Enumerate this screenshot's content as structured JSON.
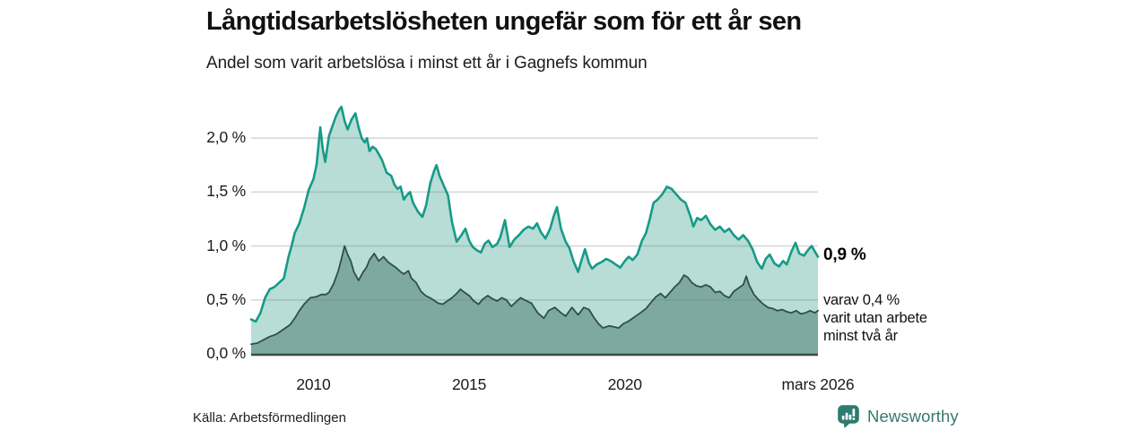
{
  "header": {
    "title": "Långtidsarbetslösheten ungefär som för ett år sen",
    "subtitle": "Andel som varit arbetslösa i minst ett år i Gagnefs kommun"
  },
  "chart_data": {
    "type": "area",
    "title": "Långtidsarbetslösheten ungefär som för ett år sen",
    "subtitle": "Andel som varit arbetslösa i minst ett år i Gagnefs kommun",
    "grid": "horizontal",
    "legend_position": "none",
    "xlim": [
      2008.0,
      2026.2
    ],
    "ylim": [
      0,
      2.4
    ],
    "x_axis": {
      "ticks": [
        {
          "label": "2010",
          "year": 2010
        },
        {
          "label": "2015",
          "year": 2015
        },
        {
          "label": "2020",
          "year": 2020
        },
        {
          "label": "mars 2026",
          "year": 2026.2
        }
      ]
    },
    "y_axis": {
      "ticks": [
        {
          "label": "0,0 %",
          "value": 0
        },
        {
          "label": "0,5 %",
          "value": 0.5
        },
        {
          "label": "1,0 %",
          "value": 1.0
        },
        {
          "label": "1,5 %",
          "value": 1.5
        },
        {
          "label": "2,0 %",
          "value": 2.0
        }
      ]
    },
    "series": [
      {
        "name": "Andel arbetslösa minst ett år",
        "line_color": "#179a88",
        "fill_color": "#b7ddd6",
        "line_width": 2.6,
        "latest_value_pct": 0.9,
        "points": [
          [
            2008.0,
            0.32
          ],
          [
            2008.15,
            0.3
          ],
          [
            2008.3,
            0.38
          ],
          [
            2008.45,
            0.52
          ],
          [
            2008.6,
            0.6
          ],
          [
            2008.75,
            0.62
          ],
          [
            2008.9,
            0.66
          ],
          [
            2009.05,
            0.7
          ],
          [
            2009.2,
            0.9
          ],
          [
            2009.3,
            1.0
          ],
          [
            2009.4,
            1.12
          ],
          [
            2009.55,
            1.21
          ],
          [
            2009.7,
            1.35
          ],
          [
            2009.85,
            1.52
          ],
          [
            2010.0,
            1.62
          ],
          [
            2010.1,
            1.75
          ],
          [
            2010.22,
            2.1
          ],
          [
            2010.3,
            1.9
          ],
          [
            2010.38,
            1.78
          ],
          [
            2010.5,
            2.02
          ],
          [
            2010.62,
            2.12
          ],
          [
            2010.72,
            2.2
          ],
          [
            2010.82,
            2.26
          ],
          [
            2010.9,
            2.29
          ],
          [
            2011.0,
            2.16
          ],
          [
            2011.1,
            2.08
          ],
          [
            2011.22,
            2.17
          ],
          [
            2011.35,
            2.23
          ],
          [
            2011.45,
            2.1
          ],
          [
            2011.55,
            2.0
          ],
          [
            2011.65,
            1.96
          ],
          [
            2011.72,
            2.0
          ],
          [
            2011.8,
            1.88
          ],
          [
            2011.9,
            1.92
          ],
          [
            2012.0,
            1.9
          ],
          [
            2012.1,
            1.85
          ],
          [
            2012.2,
            1.8
          ],
          [
            2012.35,
            1.68
          ],
          [
            2012.5,
            1.65
          ],
          [
            2012.6,
            1.57
          ],
          [
            2012.7,
            1.53
          ],
          [
            2012.8,
            1.55
          ],
          [
            2012.9,
            1.43
          ],
          [
            2013.0,
            1.47
          ],
          [
            2013.1,
            1.5
          ],
          [
            2013.2,
            1.4
          ],
          [
            2013.35,
            1.32
          ],
          [
            2013.5,
            1.27
          ],
          [
            2013.62,
            1.38
          ],
          [
            2013.75,
            1.58
          ],
          [
            2013.88,
            1.7
          ],
          [
            2013.95,
            1.75
          ],
          [
            2014.05,
            1.65
          ],
          [
            2014.2,
            1.55
          ],
          [
            2014.32,
            1.47
          ],
          [
            2014.45,
            1.22
          ],
          [
            2014.6,
            1.04
          ],
          [
            2014.75,
            1.1
          ],
          [
            2014.88,
            1.16
          ],
          [
            2015.0,
            1.05
          ],
          [
            2015.12,
            0.99
          ],
          [
            2015.25,
            0.96
          ],
          [
            2015.38,
            0.94
          ],
          [
            2015.5,
            1.02
          ],
          [
            2015.62,
            1.05
          ],
          [
            2015.75,
            0.99
          ],
          [
            2015.9,
            1.02
          ],
          [
            2016.0,
            1.08
          ],
          [
            2016.15,
            1.24
          ],
          [
            2016.3,
            0.99
          ],
          [
            2016.45,
            1.06
          ],
          [
            2016.6,
            1.1
          ],
          [
            2016.75,
            1.15
          ],
          [
            2016.9,
            1.18
          ],
          [
            2017.05,
            1.16
          ],
          [
            2017.18,
            1.21
          ],
          [
            2017.3,
            1.13
          ],
          [
            2017.45,
            1.07
          ],
          [
            2017.6,
            1.16
          ],
          [
            2017.72,
            1.28
          ],
          [
            2017.82,
            1.36
          ],
          [
            2017.95,
            1.16
          ],
          [
            2018.1,
            1.04
          ],
          [
            2018.22,
            0.98
          ],
          [
            2018.35,
            0.86
          ],
          [
            2018.5,
            0.76
          ],
          [
            2018.62,
            0.88
          ],
          [
            2018.72,
            0.97
          ],
          [
            2018.85,
            0.84
          ],
          [
            2018.95,
            0.79
          ],
          [
            2019.1,
            0.83
          ],
          [
            2019.25,
            0.85
          ],
          [
            2019.4,
            0.88
          ],
          [
            2019.55,
            0.86
          ],
          [
            2019.7,
            0.83
          ],
          [
            2019.85,
            0.8
          ],
          [
            2020.0,
            0.86
          ],
          [
            2020.12,
            0.9
          ],
          [
            2020.25,
            0.87
          ],
          [
            2020.4,
            0.92
          ],
          [
            2020.55,
            1.05
          ],
          [
            2020.68,
            1.12
          ],
          [
            2020.8,
            1.25
          ],
          [
            2020.92,
            1.4
          ],
          [
            2021.05,
            1.43
          ],
          [
            2021.2,
            1.48
          ],
          [
            2021.35,
            1.55
          ],
          [
            2021.5,
            1.53
          ],
          [
            2021.65,
            1.48
          ],
          [
            2021.8,
            1.43
          ],
          [
            2021.95,
            1.4
          ],
          [
            2022.1,
            1.28
          ],
          [
            2022.2,
            1.18
          ],
          [
            2022.32,
            1.26
          ],
          [
            2022.45,
            1.24
          ],
          [
            2022.6,
            1.28
          ],
          [
            2022.75,
            1.2
          ],
          [
            2022.9,
            1.15
          ],
          [
            2023.05,
            1.18
          ],
          [
            2023.2,
            1.13
          ],
          [
            2023.35,
            1.16
          ],
          [
            2023.5,
            1.1
          ],
          [
            2023.65,
            1.06
          ],
          [
            2023.8,
            1.1
          ],
          [
            2023.95,
            1.05
          ],
          [
            2024.1,
            0.97
          ],
          [
            2024.25,
            0.85
          ],
          [
            2024.4,
            0.79
          ],
          [
            2024.52,
            0.88
          ],
          [
            2024.65,
            0.92
          ],
          [
            2024.8,
            0.84
          ],
          [
            2024.95,
            0.81
          ],
          [
            2025.08,
            0.86
          ],
          [
            2025.2,
            0.83
          ],
          [
            2025.35,
            0.95
          ],
          [
            2025.48,
            1.03
          ],
          [
            2025.6,
            0.93
          ],
          [
            2025.75,
            0.91
          ],
          [
            2025.9,
            0.97
          ],
          [
            2026.0,
            1.0
          ],
          [
            2026.1,
            0.95
          ],
          [
            2026.2,
            0.9
          ]
        ]
      },
      {
        "name": "varav utan arbete minst två år",
        "line_color": "#2f4f49",
        "fill_color": "#7da9a1",
        "line_width": 1.8,
        "latest_value_pct": 0.4,
        "points": [
          [
            2008.0,
            0.09
          ],
          [
            2008.2,
            0.1
          ],
          [
            2008.4,
            0.13
          ],
          [
            2008.6,
            0.16
          ],
          [
            2008.8,
            0.18
          ],
          [
            2008.95,
            0.21
          ],
          [
            2009.1,
            0.24
          ],
          [
            2009.25,
            0.27
          ],
          [
            2009.4,
            0.33
          ],
          [
            2009.55,
            0.4
          ],
          [
            2009.7,
            0.46
          ],
          [
            2009.9,
            0.52
          ],
          [
            2010.1,
            0.53
          ],
          [
            2010.25,
            0.55
          ],
          [
            2010.4,
            0.55
          ],
          [
            2010.5,
            0.57
          ],
          [
            2010.65,
            0.65
          ],
          [
            2010.8,
            0.77
          ],
          [
            2010.9,
            0.88
          ],
          [
            2011.0,
            1.0
          ],
          [
            2011.1,
            0.92
          ],
          [
            2011.2,
            0.86
          ],
          [
            2011.3,
            0.76
          ],
          [
            2011.45,
            0.68
          ],
          [
            2011.6,
            0.76
          ],
          [
            2011.7,
            0.8
          ],
          [
            2011.8,
            0.87
          ],
          [
            2011.95,
            0.93
          ],
          [
            2012.1,
            0.86
          ],
          [
            2012.25,
            0.9
          ],
          [
            2012.4,
            0.85
          ],
          [
            2012.5,
            0.83
          ],
          [
            2012.65,
            0.8
          ],
          [
            2012.8,
            0.76
          ],
          [
            2012.9,
            0.74
          ],
          [
            2013.05,
            0.77
          ],
          [
            2013.15,
            0.7
          ],
          [
            2013.3,
            0.66
          ],
          [
            2013.45,
            0.58
          ],
          [
            2013.6,
            0.54
          ],
          [
            2013.8,
            0.51
          ],
          [
            2014.0,
            0.47
          ],
          [
            2014.15,
            0.46
          ],
          [
            2014.3,
            0.49
          ],
          [
            2014.45,
            0.52
          ],
          [
            2014.6,
            0.56
          ],
          [
            2014.72,
            0.6
          ],
          [
            2014.85,
            0.57
          ],
          [
            2015.0,
            0.54
          ],
          [
            2015.15,
            0.49
          ],
          [
            2015.3,
            0.46
          ],
          [
            2015.45,
            0.51
          ],
          [
            2015.6,
            0.54
          ],
          [
            2015.75,
            0.51
          ],
          [
            2015.9,
            0.49
          ],
          [
            2016.05,
            0.52
          ],
          [
            2016.2,
            0.5
          ],
          [
            2016.35,
            0.44
          ],
          [
            2016.5,
            0.48
          ],
          [
            2016.65,
            0.52
          ],
          [
            2016.85,
            0.49
          ],
          [
            2017.0,
            0.47
          ],
          [
            2017.2,
            0.38
          ],
          [
            2017.4,
            0.33
          ],
          [
            2017.55,
            0.4
          ],
          [
            2017.75,
            0.43
          ],
          [
            2017.95,
            0.38
          ],
          [
            2018.1,
            0.35
          ],
          [
            2018.3,
            0.43
          ],
          [
            2018.5,
            0.36
          ],
          [
            2018.68,
            0.43
          ],
          [
            2018.85,
            0.41
          ],
          [
            2019.0,
            0.34
          ],
          [
            2019.15,
            0.28
          ],
          [
            2019.3,
            0.24
          ],
          [
            2019.5,
            0.26
          ],
          [
            2019.65,
            0.25
          ],
          [
            2019.8,
            0.24
          ],
          [
            2019.95,
            0.28
          ],
          [
            2020.1,
            0.3
          ],
          [
            2020.3,
            0.34
          ],
          [
            2020.5,
            0.38
          ],
          [
            2020.68,
            0.42
          ],
          [
            2020.85,
            0.48
          ],
          [
            2021.0,
            0.53
          ],
          [
            2021.15,
            0.56
          ],
          [
            2021.3,
            0.52
          ],
          [
            2021.45,
            0.57
          ],
          [
            2021.6,
            0.62
          ],
          [
            2021.75,
            0.66
          ],
          [
            2021.9,
            0.73
          ],
          [
            2022.02,
            0.71
          ],
          [
            2022.15,
            0.66
          ],
          [
            2022.3,
            0.63
          ],
          [
            2022.45,
            0.62
          ],
          [
            2022.6,
            0.64
          ],
          [
            2022.75,
            0.62
          ],
          [
            2022.9,
            0.57
          ],
          [
            2023.05,
            0.58
          ],
          [
            2023.2,
            0.54
          ],
          [
            2023.35,
            0.52
          ],
          [
            2023.5,
            0.58
          ],
          [
            2023.65,
            0.61
          ],
          [
            2023.8,
            0.64
          ],
          [
            2023.9,
            0.72
          ],
          [
            2024.0,
            0.63
          ],
          [
            2024.15,
            0.55
          ],
          [
            2024.3,
            0.5
          ],
          [
            2024.45,
            0.46
          ],
          [
            2024.6,
            0.43
          ],
          [
            2024.75,
            0.42
          ],
          [
            2024.9,
            0.4
          ],
          [
            2025.05,
            0.41
          ],
          [
            2025.2,
            0.39
          ],
          [
            2025.35,
            0.38
          ],
          [
            2025.5,
            0.4
          ],
          [
            2025.65,
            0.37
          ],
          [
            2025.8,
            0.38
          ],
          [
            2025.95,
            0.4
          ],
          [
            2026.1,
            0.38
          ],
          [
            2026.2,
            0.4
          ]
        ]
      }
    ],
    "annotations": [
      {
        "text": "0,9 %",
        "style": "bold",
        "refers_to": "Andel arbetslösa minst ett år"
      },
      {
        "text": "varav 0,4 %\nvarit utan arbete\nminst två år",
        "refers_to": "varav utan arbete minst två år"
      }
    ]
  },
  "annotations": {
    "latest_value": "0,9 %",
    "secondary": "varav 0,4 %\nvarit utan arbete\nminst två år"
  },
  "footer": {
    "source": "Källa: Arbetsförmedlingen",
    "brand": "Newsworthy"
  },
  "colors": {
    "series1_line": "#179a88",
    "series1_fill": "#b7ddd6",
    "series2_line": "#2f4f49",
    "series2_fill": "#7da9a1",
    "gridline": "#e2e2e2",
    "baseline": "#3c4a46",
    "brand_teal": "#2e7b70",
    "brand_text": "#37786e"
  }
}
